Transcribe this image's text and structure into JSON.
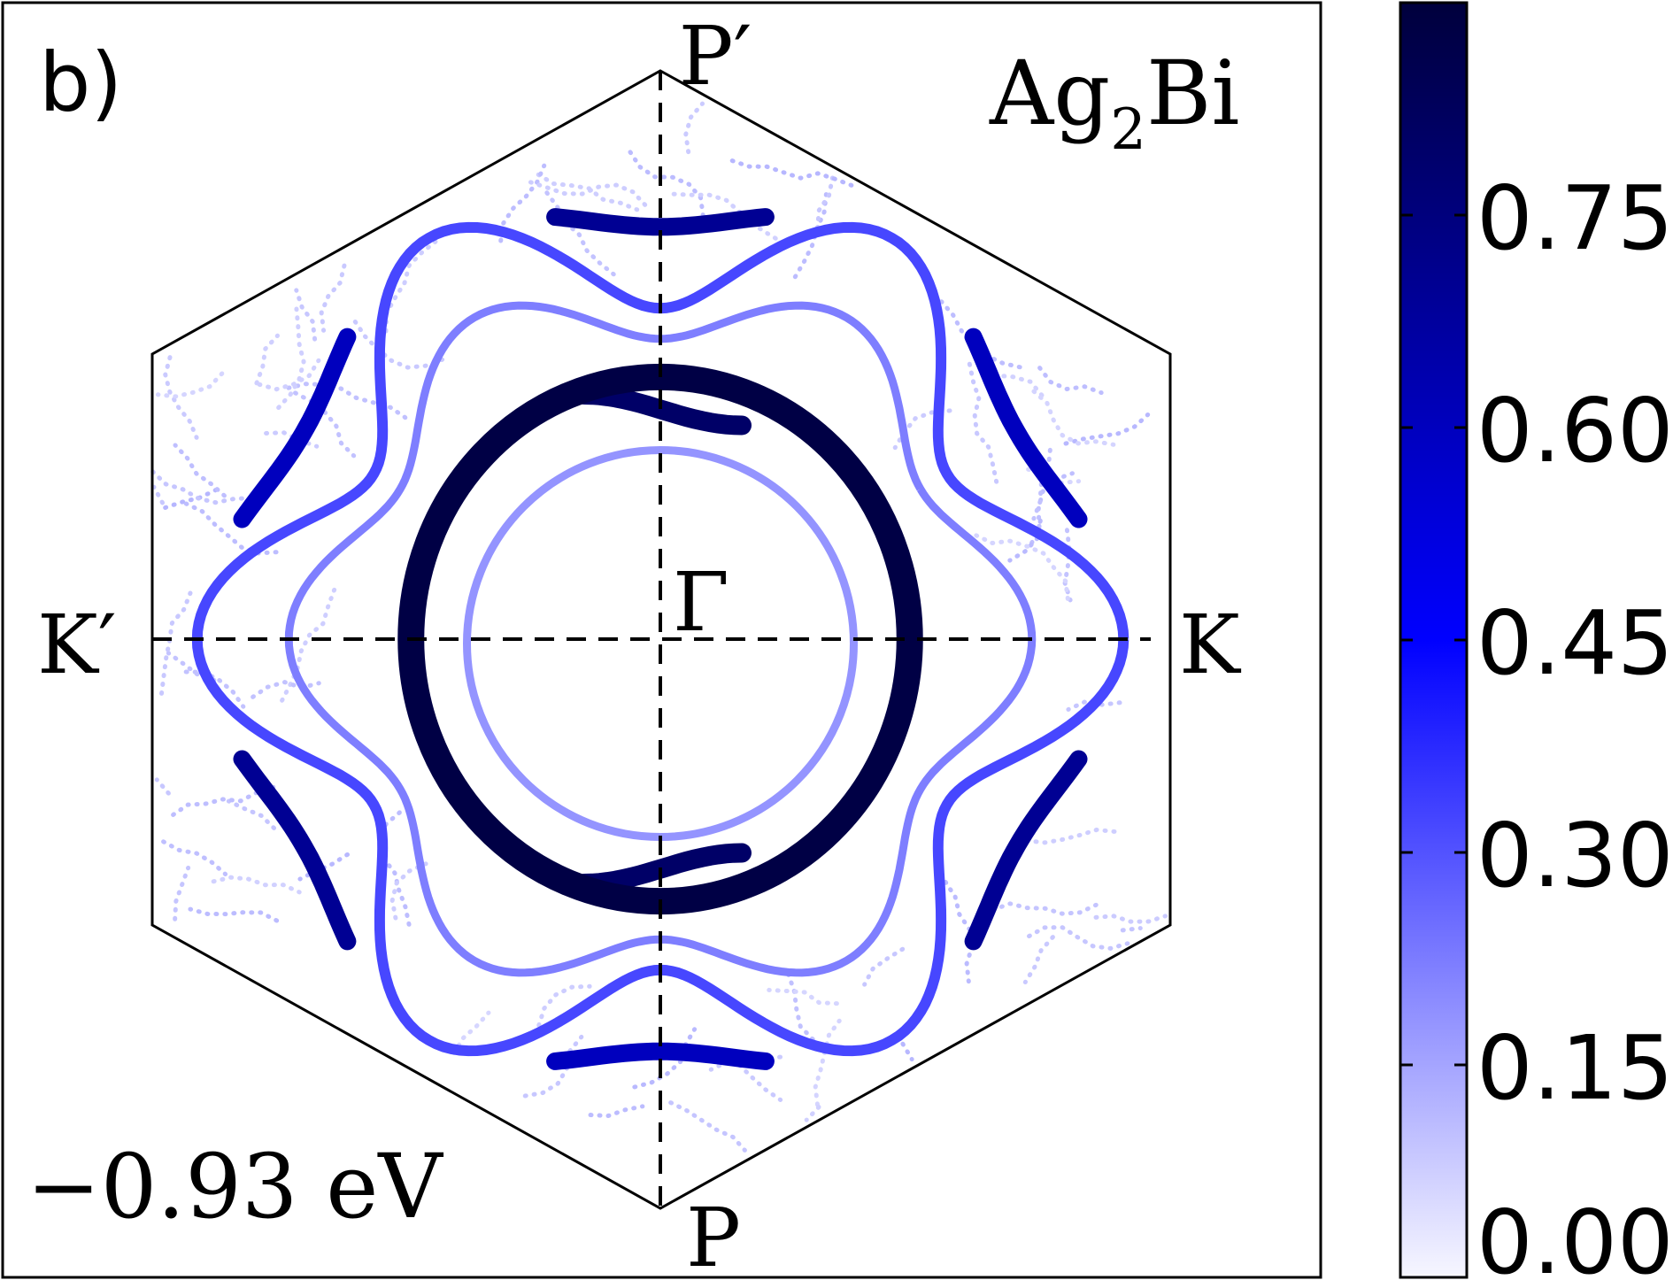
{
  "chart_data": {
    "type": "scatter",
    "panel_label": "b)",
    "material": {
      "base": "Ag",
      "sub": "2",
      "rest": "Bi"
    },
    "energy_label": "−0.93 eV",
    "points": {
      "P_prime": "P′",
      "P": "P",
      "K_prime": "K′",
      "K": "K",
      "Gamma": "Γ"
    },
    "colorbar": {
      "min": 0.0,
      "max": 0.9,
      "ticks": [
        0.0,
        0.15,
        0.3,
        0.45,
        0.6,
        0.75
      ],
      "tick_labels": [
        "0.00",
        "0.15",
        "0.30",
        "0.45",
        "0.60",
        "0.75"
      ],
      "colors": [
        "#f7f7ff",
        "#0000ff",
        "#00003c"
      ]
    },
    "features": [
      {
        "name": "inner-ring",
        "shape": "circle",
        "radius": 0.46,
        "weight": 0.18
      },
      {
        "name": "main-ring",
        "shape": "circle",
        "radius": 0.63,
        "weight": 0.88
      },
      {
        "name": "petal-contour",
        "shape": "hexagonal-lobed",
        "weight": 0.32
      },
      {
        "name": "outer-arcs",
        "shape": "six-fold-segments",
        "weight": 0.6
      },
      {
        "name": "background-traces",
        "shape": "diffuse",
        "weight": 0.06
      }
    ]
  }
}
